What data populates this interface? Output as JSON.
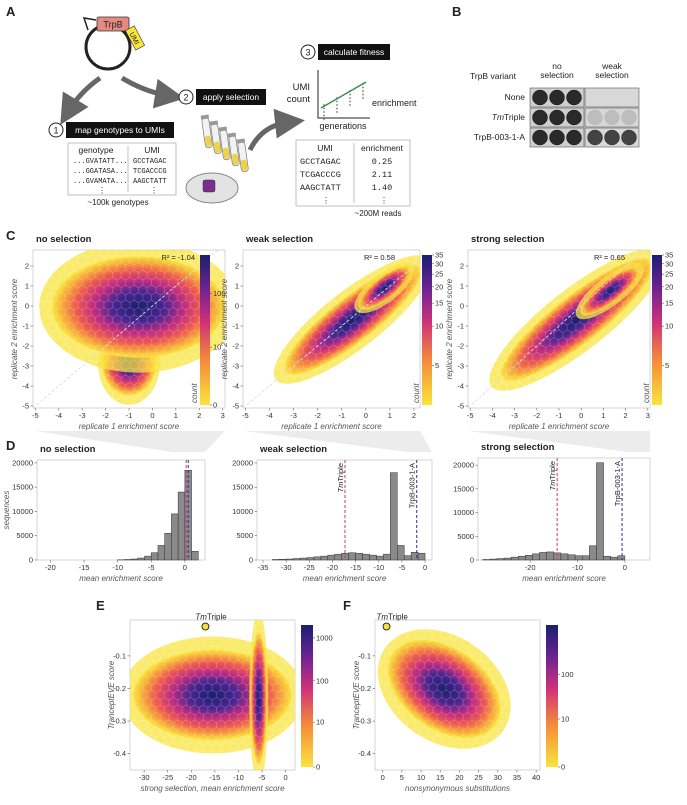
{
  "panel_a": {
    "label": "A",
    "plasmid": "TrpB",
    "umi": "UMI",
    "steps": [
      {
        "number": "1",
        "text": "map genotypes to UMIs"
      },
      {
        "number": "2",
        "text": "apply selection"
      },
      {
        "number": "3",
        "text": "calculate fitness"
      }
    ],
    "genotype_table": {
      "headers": [
        "genotype",
        "UMI"
      ],
      "rows": [
        [
          "...GVATATT...",
          "GCCTAGAC"
        ],
        [
          "...GGATASA...",
          "TCGACCCG"
        ],
        [
          "...GVAMATA...",
          "AAGCTATT"
        ]
      ],
      "ellipsis": "⋮",
      "note": "~100k genotypes"
    },
    "fitness_plot": {
      "y_label": [
        "UMI",
        "count"
      ],
      "x_label": "generations",
      "line_label": "enrichment"
    },
    "enrichment_table": {
      "headers": [
        "UMI",
        "enrichment"
      ],
      "rows": [
        [
          "GCCTAGAC",
          "0.25"
        ],
        [
          "TCGACCCG",
          "2.11"
        ],
        [
          "AAGCTATT",
          "1.40"
        ]
      ],
      "ellipsis": "⋮",
      "note": "~200M reads"
    }
  },
  "panel_b": {
    "label": "B",
    "header": "TrpB variant",
    "columns": [
      [
        "no",
        "selection"
      ],
      [
        "weak",
        "selection"
      ]
    ],
    "rows": [
      {
        "text": "None"
      },
      {
        "italic": "Tm",
        "text": "Triple"
      },
      {
        "text": "TrpB-003-1-A"
      }
    ]
  },
  "panel_labels": [
    "C",
    "D",
    "E",
    "F"
  ],
  "chart_data": [
    {
      "type": "hexbin",
      "title": "no selection",
      "x_label": "replicate 1 enrichment score",
      "y_label": "replicate 2 enrichment score",
      "xlim": [
        -5.1,
        3.1
      ],
      "xticks": [
        -5,
        -4,
        -3,
        -2,
        -1,
        0,
        1,
        2,
        3
      ],
      "ylim": [
        -5.1,
        2.8
      ],
      "yticks": [
        -5,
        -4,
        -3,
        -2,
        -1,
        0,
        1,
        2
      ],
      "annotation": "R² = -1.04",
      "diagonal": true,
      "colorbar": {
        "scale": "symlog",
        "lim": [
          0,
          500
        ],
        "ticks": [
          0,
          10,
          100
        ],
        "label": "count"
      }
    },
    {
      "type": "hexbin",
      "title": "weak selection",
      "x_label": "replicate 1 enrichment score",
      "y_label": "replicate 2 enrichment score",
      "xlim": [
        -5.1,
        2.25
      ],
      "xticks": [
        -5,
        -4,
        -3,
        -2,
        -1,
        0,
        1,
        2
      ],
      "ylim": [
        -5.1,
        2.8
      ],
      "yticks": [
        -5,
        -4,
        -3,
        -2,
        -1,
        0,
        1,
        2
      ],
      "annotation": "R² = 0.58",
      "diagonal": true,
      "colorbar": {
        "scale": "log",
        "lim": [
          2.5,
          35
        ],
        "ticks": [
          5,
          10,
          15,
          20,
          25,
          30,
          35
        ],
        "label": "count"
      }
    },
    {
      "type": "hexbin",
      "title": "strong selection",
      "x_label": "replicate 1 enrichment score",
      "y_label": "replicate 2 enrichment score",
      "xlim": [
        -5.1,
        3.1
      ],
      "xticks": [
        -5,
        -4,
        -3,
        -2,
        -1,
        0,
        1,
        2,
        3
      ],
      "ylim": [
        -5.1,
        2.8
      ],
      "yticks": [
        -5,
        -4,
        -3,
        -2,
        -1,
        0,
        1,
        2
      ],
      "annotation": "R² = 0.65",
      "diagonal": true,
      "colorbar": {
        "scale": "log",
        "lim": [
          2.5,
          35
        ],
        "ticks": [
          5,
          10,
          15,
          20,
          25,
          30,
          35
        ],
        "label": "count"
      }
    },
    {
      "type": "histogram",
      "title": "no selection",
      "x_label": "mean enrichment score",
      "y_label": "sequences",
      "color": "#8a8a8a",
      "xlim": [
        -22,
        3
      ],
      "xticks": [
        -20,
        -15,
        -10,
        -5,
        0
      ],
      "ylim": [
        0,
        20600
      ],
      "yticks": [
        0,
        5000,
        10000,
        15000,
        20000
      ],
      "bins": [
        -10,
        -9,
        -8,
        -7,
        -6,
        -5,
        -4,
        -3,
        -2,
        -1,
        0,
        1,
        2
      ],
      "values": [
        50,
        100,
        200,
        400,
        800,
        1500,
        3000,
        5500,
        9500,
        14000,
        18500,
        1800
      ],
      "vlines": [
        {
          "x": 0.2,
          "color": "#d6336c"
        },
        {
          "x": 0.5,
          "color": "#2b2b9e"
        }
      ]
    },
    {
      "type": "histogram",
      "title": "weak selection",
      "x_label": "mean enrichment score",
      "color": "#8a8a8a",
      "xlim": [
        -36.3,
        1.5
      ],
      "xticks": [
        -35,
        -30,
        -25,
        -20,
        -15,
        -10,
        -5,
        0
      ],
      "ylim": [
        0,
        20600
      ],
      "yticks": [
        0,
        5000,
        10000,
        15000,
        20000
      ],
      "bins": [
        -33,
        -31.5,
        -30,
        -28.5,
        -27,
        -25.5,
        -24,
        -22.5,
        -21,
        -19.5,
        -18,
        -16.5,
        -15,
        -13.5,
        -12,
        -10.5,
        -9,
        -7.5,
        -6,
        -4.5,
        -3,
        -1.5,
        0
      ],
      "values": [
        100,
        150,
        200,
        300,
        400,
        500,
        650,
        800,
        1000,
        1200,
        1400,
        1500,
        1400,
        1200,
        1000,
        800,
        1200,
        18000,
        3000,
        900,
        1600,
        1400
      ],
      "vlines": [
        {
          "x": -17.3,
          "color": "#d6336c",
          "label_italic": "Tm",
          "label": "Triple"
        },
        {
          "x": -1.8,
          "color": "#2b2b9e",
          "label": "TrpB-003-1-A"
        }
      ]
    },
    {
      "type": "histogram",
      "title": "strong selection",
      "x_label": "mean enrichment score",
      "color": "#8a8a8a",
      "xlim": [
        -31,
        5.3
      ],
      "xticks": [
        -20,
        -10,
        0
      ],
      "ylim": [
        0,
        21500
      ],
      "yticks": [
        0,
        5000,
        10000,
        15000,
        20000
      ],
      "bins": [
        -30,
        -28.5,
        -27,
        -25.5,
        -24,
        -22.5,
        -21,
        -19.5,
        -18,
        -16.5,
        -15,
        -13.5,
        -12,
        -10.5,
        -9,
        -7.5,
        -6,
        -4.5,
        -3,
        -1.5,
        0
      ],
      "values": [
        100,
        200,
        300,
        400,
        600,
        800,
        1000,
        1300,
        1600,
        1700,
        1500,
        1300,
        1100,
        900,
        900,
        3000,
        20500,
        800,
        600,
        900
      ],
      "vlines": [
        {
          "x": -14.3,
          "color": "#d6336c",
          "label_italic": "Tm",
          "label": "Triple"
        },
        {
          "x": -0.6,
          "color": "#2b2b9e",
          "label": "TrpB-003-1-A"
        }
      ]
    },
    {
      "type": "hexbin",
      "x_label": "strong selection, mean enrichment score",
      "y_label": "TranceptEVE score",
      "xlim": [
        -33,
        2
      ],
      "xticks": [
        -30,
        -25,
        -20,
        -15,
        -10,
        -5,
        0
      ],
      "ylim": [
        -0.45,
        0.01
      ],
      "yticks": [
        -0.4,
        -0.3,
        -0.2,
        -0.1
      ],
      "highlight": {
        "x": -17,
        "y": -0.01,
        "label_italic": "Tm",
        "label": "Triple"
      },
      "colorbar": {
        "scale": "symlog",
        "lim": [
          0,
          2000
        ],
        "ticks": [
          0,
          10,
          100,
          1000
        ]
      }
    },
    {
      "type": "hexbin",
      "x_label": "nonsynonymous substitutions",
      "y_label": "TranceptEVE score",
      "xlim": [
        -2,
        41
      ],
      "xticks": [
        0,
        5,
        10,
        15,
        20,
        25,
        30,
        35,
        40
      ],
      "ylim": [
        -0.45,
        0.01
      ],
      "yticks": [
        -0.4,
        -0.3,
        -0.2,
        -0.1
      ],
      "highlight": {
        "x": 1,
        "y": -0.01,
        "label_italic": "Tm",
        "label": "Triple"
      },
      "colorbar": {
        "scale": "symlog",
        "lim": [
          0,
          1200
        ],
        "ticks": [
          0,
          10,
          100
        ]
      }
    }
  ]
}
